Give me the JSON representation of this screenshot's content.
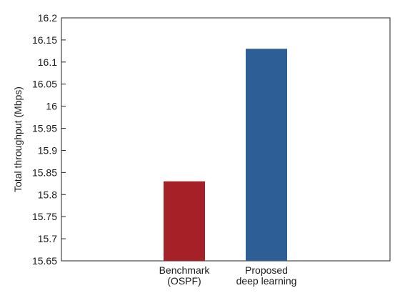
{
  "chart_data": {
    "type": "bar",
    "title": "",
    "xlabel": "",
    "ylabel": "Total throughput (Mbps)",
    "ylim": [
      15.65,
      16.2
    ],
    "yticks": [
      "15.65",
      "15.7",
      "15.75",
      "15.8",
      "15.85",
      "15.9",
      "15.95",
      "16",
      "16.05",
      "16.1",
      "16.15",
      "16.2"
    ],
    "categories": [
      [
        "Benchmark",
        "(OSPF)"
      ],
      [
        "Proposed",
        "deep learning"
      ]
    ],
    "values": [
      15.83,
      16.13
    ],
    "colors": [
      "#a52127",
      "#2d5e96"
    ],
    "grid": false,
    "legend": "none"
  }
}
